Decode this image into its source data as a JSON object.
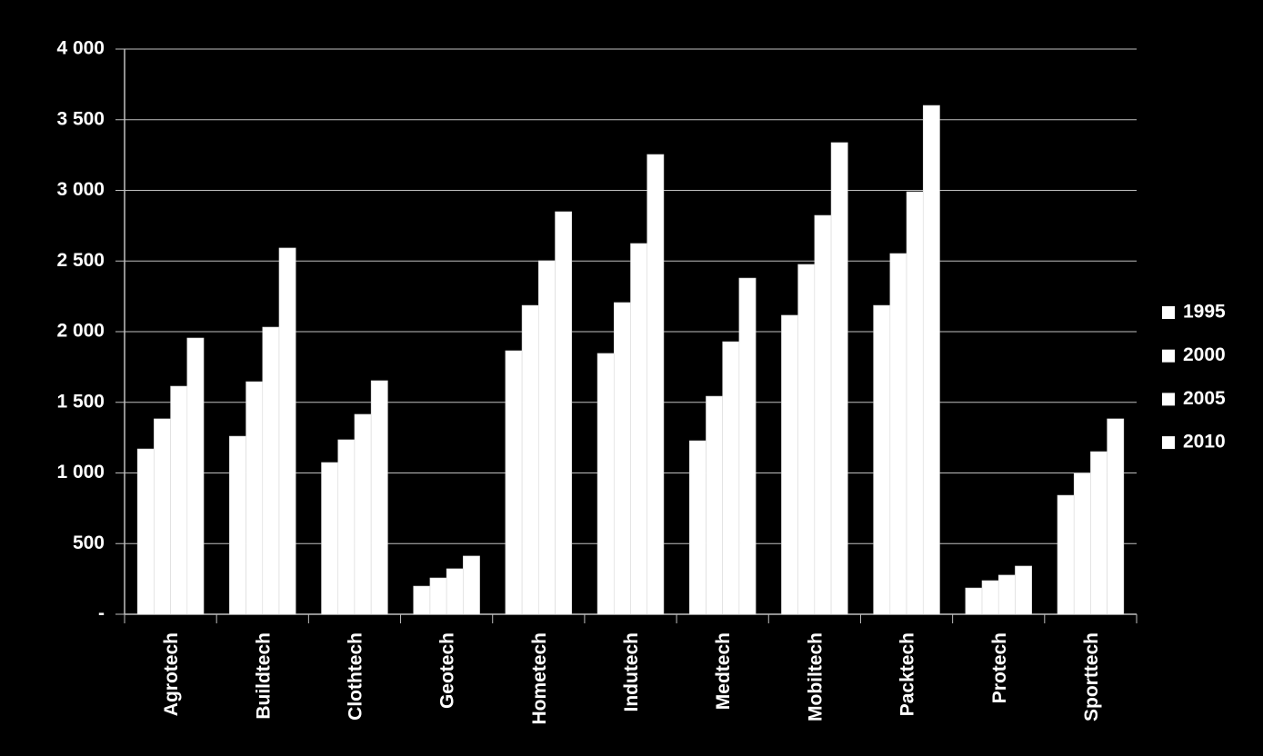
{
  "chart_data": {
    "type": "bar",
    "categories": [
      "Agrotech",
      "Buildtech",
      "Clothtech",
      "Geotech",
      "Hometech",
      "Indutech",
      "Medtech",
      "Mobiltech",
      "Packtech",
      "Protech",
      "Sporttech"
    ],
    "series": [
      {
        "name": "1995",
        "color": "#ffffff",
        "values": [
          1170,
          1260,
          1074,
          199,
          1865,
          1846,
          1228,
          2116,
          2186,
          186,
          842
        ]
      },
      {
        "name": "2000",
        "color": "#ffffff",
        "values": [
          1383,
          1646,
          1235,
          257,
          2186,
          2206,
          1543,
          2476,
          2553,
          238,
          997
        ]
      },
      {
        "name": "2005",
        "color": "#ffffff",
        "values": [
          1614,
          2032,
          1415,
          322,
          2502,
          2624,
          1929,
          2823,
          2990,
          277,
          1151
        ]
      },
      {
        "name": "2010",
        "color": "#ffffff",
        "values": [
          1955,
          2592,
          1653,
          412,
          2849,
          3254,
          2379,
          3338,
          3601,
          341,
          1383
        ]
      }
    ],
    "ylim": [
      0,
      4000
    ],
    "yticks": [
      {
        "value": 0,
        "label": "-"
      },
      500,
      {
        "value": 1000,
        "label": "1 000"
      },
      {
        "value": 1500,
        "label": "1 500"
      },
      {
        "value": 2000,
        "label": "2 000"
      },
      {
        "value": 2500,
        "label": "2 500"
      },
      {
        "value": 3000,
        "label": "3 000"
      },
      {
        "value": 3500,
        "label": "3 500"
      },
      {
        "value": 4000,
        "label": "4 000"
      }
    ],
    "grid": true,
    "legend": "right"
  }
}
